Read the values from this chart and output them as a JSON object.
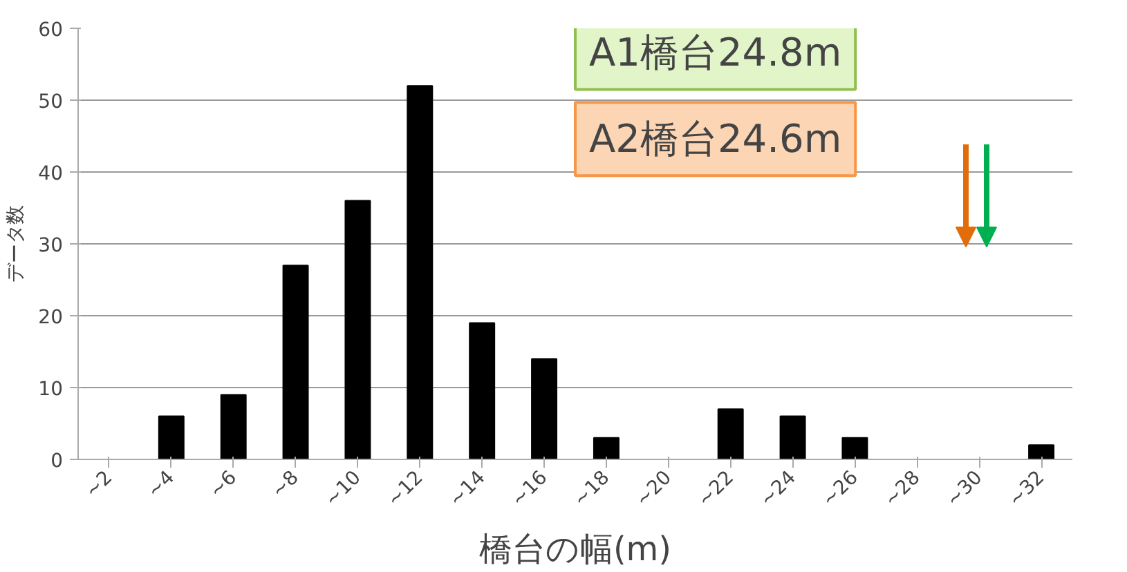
{
  "chart_data": {
    "type": "bar",
    "categories": [
      "~2",
      "~4",
      "~6",
      "~8",
      "~10",
      "~12",
      "~14",
      "~16",
      "~18",
      "~20",
      "~22",
      "~24",
      "~26",
      "~28",
      "~30",
      "~32"
    ],
    "values": [
      0,
      6,
      9,
      27,
      36,
      52,
      19,
      14,
      3,
      0,
      7,
      6,
      3,
      0,
      0,
      2
    ],
    "color": "#000000",
    "ylim": [
      0,
      60
    ],
    "yticks": [
      0,
      10,
      20,
      30,
      40,
      50,
      60
    ],
    "grid": "y",
    "xlabel": "橋台の幅(m)",
    "ylabel": "データ数",
    "annotations": [
      "A1橋台24.8m",
      "A2橋台24.6m"
    ]
  }
}
